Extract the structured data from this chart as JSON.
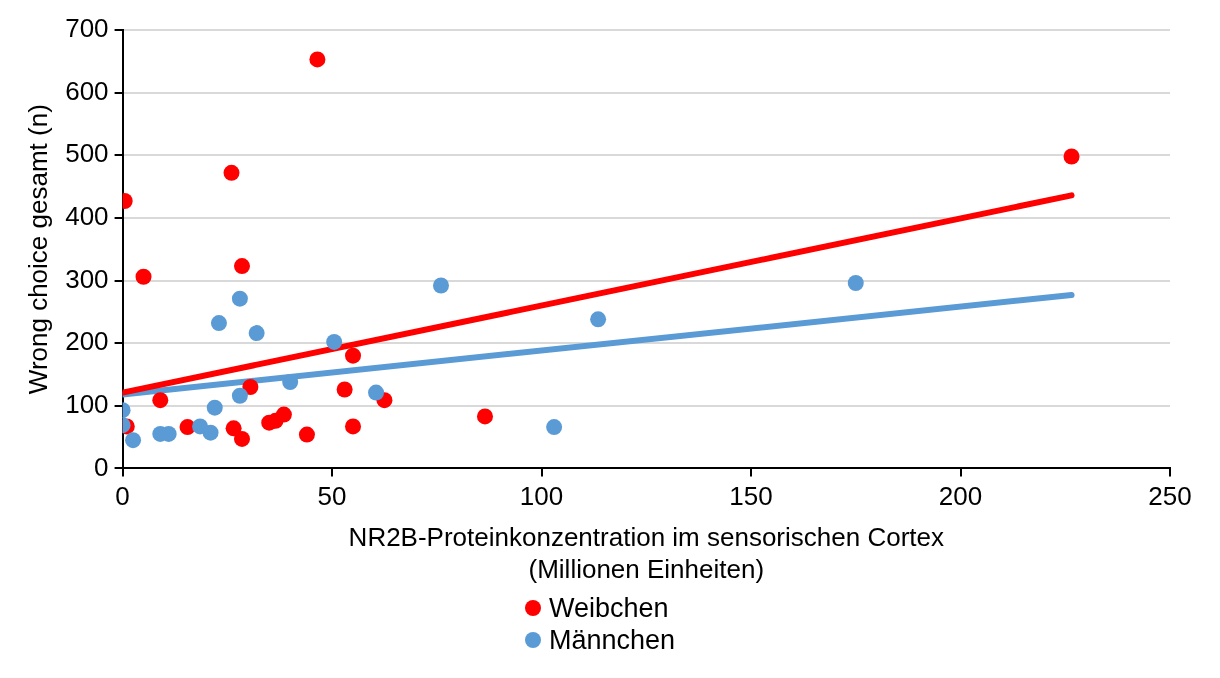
{
  "chart_data": {
    "type": "scatter",
    "xlabel": "NR2B-Proteinkonzentration im sensorischen Cortex\n(Millionen Einheiten)",
    "ylabel": "Wrong choice gesamt (n)",
    "xlim": [
      0,
      250
    ],
    "xticks": [
      0,
      50,
      100,
      150,
      200,
      250
    ],
    "ylim": [
      0,
      700
    ],
    "yticks": [
      0,
      100,
      200,
      300,
      400,
      500,
      600,
      700
    ],
    "grid": "y",
    "legend": "bottom",
    "series": [
      {
        "name": "Weibchen",
        "color": "#ff0000",
        "marker": "circle",
        "x": [
          0.5,
          1,
          5,
          9,
          15.5,
          26,
          26.5,
          28.5,
          28.5,
          30.5,
          35,
          36.5,
          38.5,
          44,
          46.5,
          53,
          55,
          55,
          62.5,
          86.5,
          226.5
        ],
        "values": [
          427,
          67,
          306,
          109,
          66,
          472,
          64,
          323,
          47,
          130,
          73,
          76,
          86,
          54,
          653,
          126,
          180,
          67,
          109,
          83,
          498
        ]
      },
      {
        "name": "Männchen",
        "color": "#5b9bd5",
        "marker": "circle",
        "x": [
          0,
          0,
          2.5,
          9,
          11,
          18.5,
          21,
          22,
          23,
          28,
          28,
          32,
          40,
          50.5,
          60.5,
          76,
          103,
          113.5,
          175
        ],
        "values": [
          93,
          69,
          45,
          55,
          55,
          67,
          57,
          97,
          232,
          116,
          271,
          216,
          138,
          202,
          121,
          292,
          66,
          238,
          296
        ]
      },
      {
        "type": "line",
        "color": "#ff0000",
        "marker": "none",
        "x": [
          0,
          226.5
        ],
        "values": [
          121,
          436
        ]
      },
      {
        "type": "line",
        "color": "#5b9bd5",
        "marker": "none",
        "x": [
          0,
          226.5
        ],
        "values": [
          118,
          277
        ]
      }
    ]
  }
}
